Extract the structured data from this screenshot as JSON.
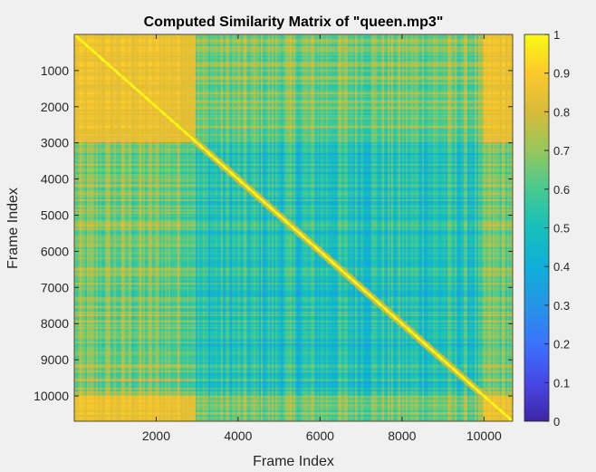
{
  "chart_data": {
    "type": "heatmap",
    "title": "Computed Similarity Matrix of \"queen.mp3\"",
    "xlabel": "Frame Index",
    "ylabel": "Frame Index",
    "xlim": [
      1,
      10700
    ],
    "ylim": [
      1,
      10700
    ],
    "y_direction": "reverse",
    "x_ticks": [
      2000,
      4000,
      6000,
      8000,
      10000
    ],
    "y_ticks": [
      1000,
      2000,
      3000,
      4000,
      5000,
      6000,
      7000,
      8000,
      9000,
      10000
    ],
    "x_tick_labels": [
      "2000",
      "4000",
      "6000",
      "8000",
      "10000"
    ],
    "y_tick_labels": [
      "1000",
      "2000",
      "3000",
      "4000",
      "5000",
      "6000",
      "7000",
      "8000",
      "9000",
      "10000"
    ],
    "colorbar": {
      "colormap": "parula",
      "range": [
        0,
        1
      ],
      "ticks": [
        0,
        0.1,
        0.2,
        0.3,
        0.4,
        0.5,
        0.6,
        0.7,
        0.8,
        0.9,
        1
      ],
      "tick_labels": [
        "0",
        "0.1",
        "0.2",
        "0.3",
        "0.4",
        "0.5",
        "0.6",
        "0.7",
        "0.8",
        "0.9",
        "1"
      ]
    },
    "segments": [
      {
        "start": 1,
        "end": 2950,
        "level": 0.85
      },
      {
        "start": 2950,
        "end": 10000,
        "level": 0.55
      },
      {
        "start": 10000,
        "end": 10700,
        "level": 0.85
      }
    ],
    "diagonal_value": 1,
    "grid": false
  }
}
